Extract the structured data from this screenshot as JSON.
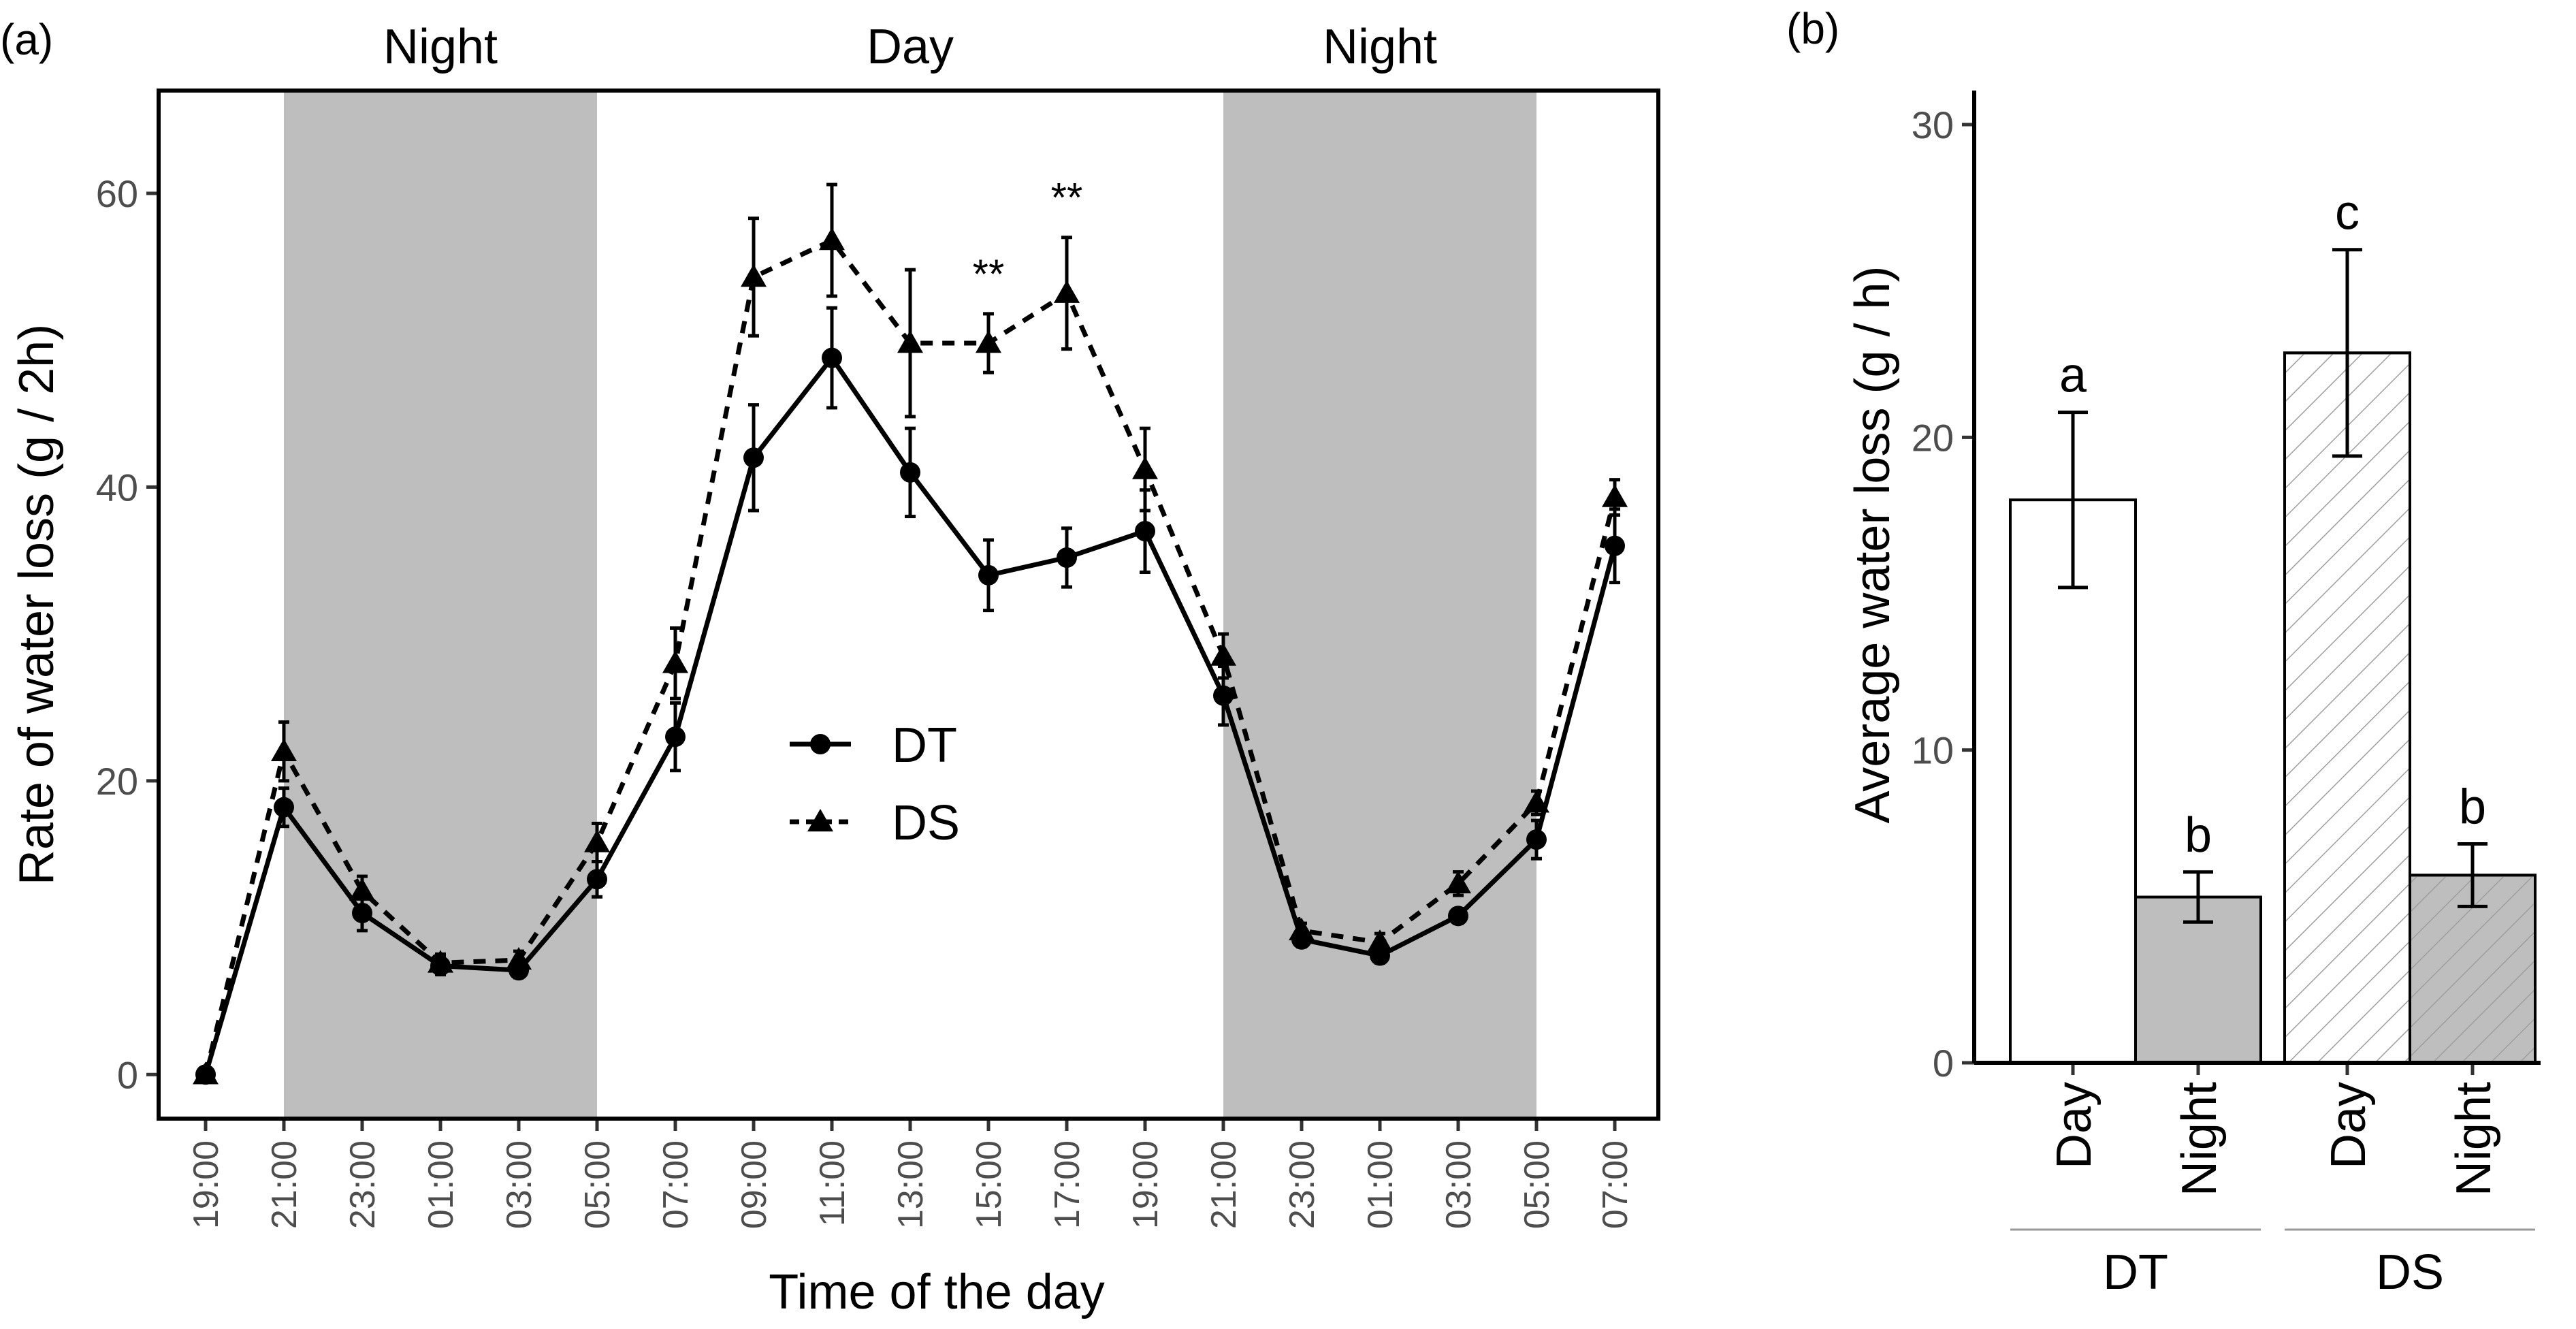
{
  "chart_data": [
    {
      "panel_label": "(a)",
      "type": "line",
      "xlabel": "Time of the day",
      "ylabel": "Rate of water loss (g / 2h)",
      "ylim": [
        -3,
        67
      ],
      "yticks": [
        0,
        20,
        40,
        60
      ],
      "categories": [
        "19:00",
        "21:00",
        "23:00",
        "01:00",
        "03:00",
        "05:00",
        "07:00",
        "09:00",
        "11:00",
        "13:00",
        "15:00",
        "17:00",
        "19:00",
        "21:00",
        "23:00",
        "01:00",
        "03:00",
        "05:00",
        "07:00"
      ],
      "period_labels": [
        {
          "text": "Night",
          "from_index": 1,
          "to_index": 5,
          "shaded": true
        },
        {
          "text": "Day",
          "from_index": 5,
          "to_index": 13,
          "shaded": false
        },
        {
          "text": "Night",
          "from_index": 13,
          "to_index": 17,
          "shaded": true
        }
      ],
      "series": [
        {
          "name": "DT",
          "marker": "circle",
          "line": "solid",
          "values": [
            0,
            18.2,
            11,
            7.4,
            7.1,
            13.3,
            23,
            42,
            48.8,
            41,
            34,
            35.2,
            37,
            25.8,
            9.2,
            8.1,
            10.8,
            16,
            36
          ],
          "errors": [
            0.3,
            1.3,
            1.2,
            0.6,
            0.5,
            1.2,
            2.3,
            3.6,
            3.4,
            3.0,
            2.4,
            2.0,
            2.8,
            2.0,
            0.5,
            0.5,
            0.5,
            1.3,
            2.5
          ]
        },
        {
          "name": "DS",
          "marker": "triangle",
          "line": "dashed",
          "values": [
            0,
            22,
            12.5,
            7.6,
            7.8,
            15.8,
            28,
            54.3,
            56.8,
            49.8,
            49.8,
            53.2,
            41.2,
            28.5,
            9.8,
            9,
            13,
            18.5,
            39.3
          ],
          "errors": [
            0.3,
            2.0,
            1.0,
            0.6,
            0.6,
            1.3,
            2.4,
            4.0,
            3.8,
            5.0,
            2.0,
            3.8,
            2.8,
            1.5,
            0.5,
            0.6,
            0.8,
            0.8,
            1.2
          ]
        }
      ],
      "annotations": [
        {
          "text": "**",
          "at_index": 10
        },
        {
          "text": "**",
          "at_index": 11
        }
      ],
      "legend": {
        "placement": "center",
        "entries": [
          "DT",
          "DS"
        ]
      },
      "grid": false
    },
    {
      "panel_label": "(b)",
      "type": "bar",
      "xlabel": "",
      "ylabel": "Average water loss (g / h)",
      "ylim": [
        0,
        30
      ],
      "yticks": [
        0,
        10,
        20,
        30
      ],
      "groups": [
        "DT",
        "DS"
      ],
      "categories": [
        "Day",
        "Night",
        "Day",
        "Night"
      ],
      "bars": [
        {
          "group": "DT",
          "category": "Day",
          "value": 18,
          "error": 2.8,
          "letter": "a",
          "fill": "#ffffff",
          "hatched": false
        },
        {
          "group": "DT",
          "category": "Night",
          "value": 5.3,
          "error": 0.8,
          "letter": "b",
          "fill": "#bebebe",
          "hatched": false
        },
        {
          "group": "DS",
          "category": "Day",
          "value": 22.7,
          "error": 3.3,
          "letter": "c",
          "fill": "#ffffff",
          "hatched": true
        },
        {
          "group": "DS",
          "category": "Night",
          "value": 6,
          "error": 1.0,
          "letter": "b",
          "fill": "#bebebe",
          "hatched": true
        }
      ],
      "grid": false
    }
  ],
  "colors": {
    "shade": "#bebebe",
    "axis": "#000000",
    "tick_text": "#4d4d4d",
    "hatch": "#9e9e9e"
  }
}
